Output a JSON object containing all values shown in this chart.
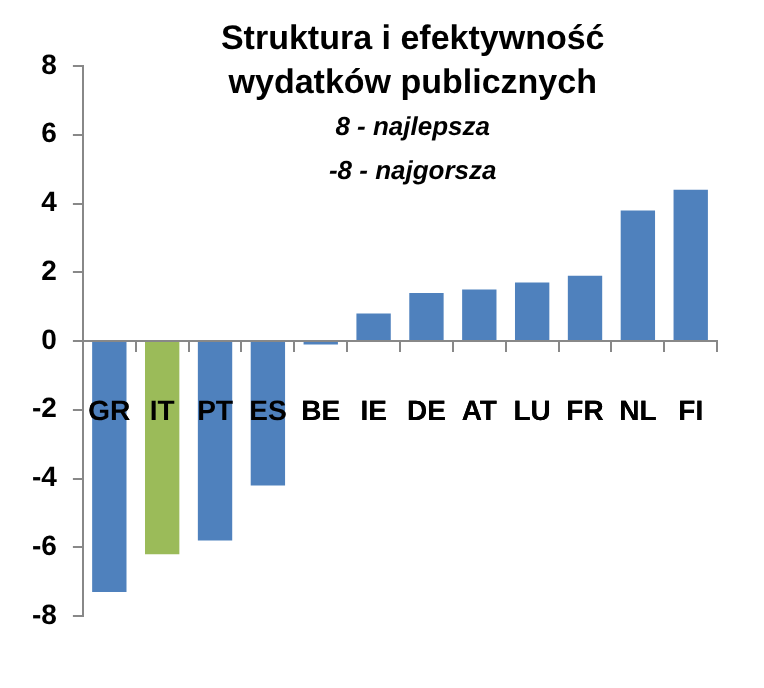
{
  "chart_data": {
    "type": "bar",
    "title": "Struktura i efektywność wydatków publicznych",
    "subtitle": "8 - najlepsza",
    "annotations": [
      "-8 - najgorsza"
    ],
    "categories": [
      "GR",
      "IT",
      "PT",
      "ES",
      "BE",
      "IE",
      "DE",
      "AT",
      "LU",
      "FR",
      "NL",
      "FI"
    ],
    "values": [
      -7.3,
      -6.2,
      -5.8,
      -4.2,
      -0.1,
      0.8,
      1.4,
      1.5,
      1.7,
      1.9,
      3.8,
      4.4
    ],
    "colors": [
      "#4f81bd",
      "#9bbb59",
      "#4f81bd",
      "#4f81bd",
      "#4f81bd",
      "#4f81bd",
      "#4f81bd",
      "#4f81bd",
      "#4f81bd",
      "#4f81bd",
      "#4f81bd",
      "#4f81bd"
    ],
    "ylim": [
      -8,
      8
    ],
    "yticks": [
      -8,
      -6,
      -4,
      -2,
      0,
      2,
      4,
      6,
      8
    ],
    "grid": false,
    "legend": false
  }
}
